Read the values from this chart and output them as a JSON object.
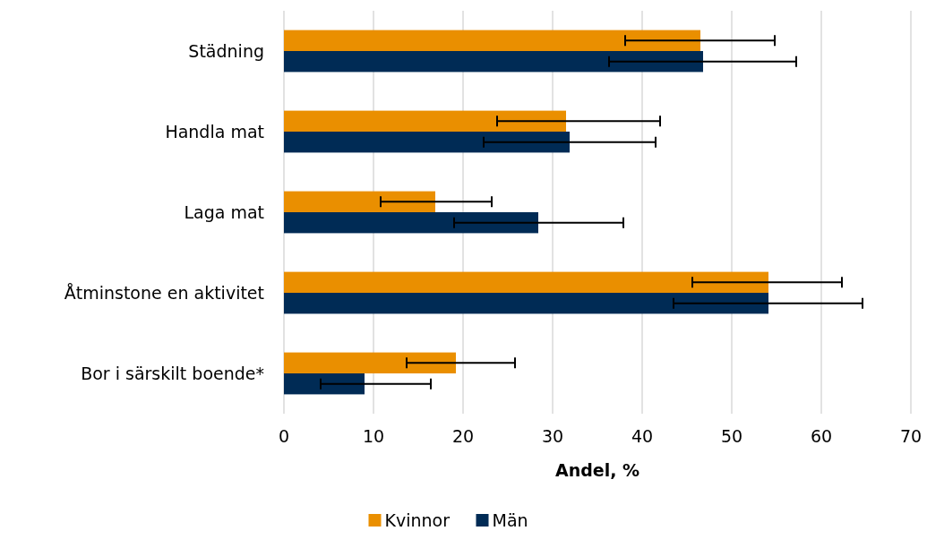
{
  "chart_data": {
    "type": "bar",
    "orientation": "horizontal",
    "xlabel": "Andel, %",
    "categories": [
      "Städning",
      "Handla mat",
      "Laga mat",
      "Åtminstone en aktivitet",
      "Bor i särskilt boende*"
    ],
    "series": [
      {
        "name": "Kvinnor",
        "color": "#ea8f00",
        "values": [
          46.5,
          31.5,
          16.9,
          54.1,
          19.2
        ],
        "errors": [
          [
            38.1,
            54.8
          ],
          [
            23.8,
            42.0
          ],
          [
            10.8,
            23.2
          ],
          [
            45.6,
            62.3
          ],
          [
            13.7,
            25.8
          ]
        ]
      },
      {
        "name": "Män",
        "color": "#002b55",
        "values": [
          46.8,
          31.9,
          28.4,
          54.1,
          9.0
        ],
        "errors": [
          [
            36.3,
            57.2
          ],
          [
            22.3,
            41.5
          ],
          [
            19.0,
            37.9
          ],
          [
            43.5,
            64.6
          ],
          [
            4.1,
            16.4
          ]
        ]
      }
    ],
    "xlim": [
      0,
      70
    ],
    "xticks": [
      0,
      10,
      20,
      30,
      40,
      50,
      60,
      70
    ],
    "grid": "x",
    "legend": "bottom"
  }
}
